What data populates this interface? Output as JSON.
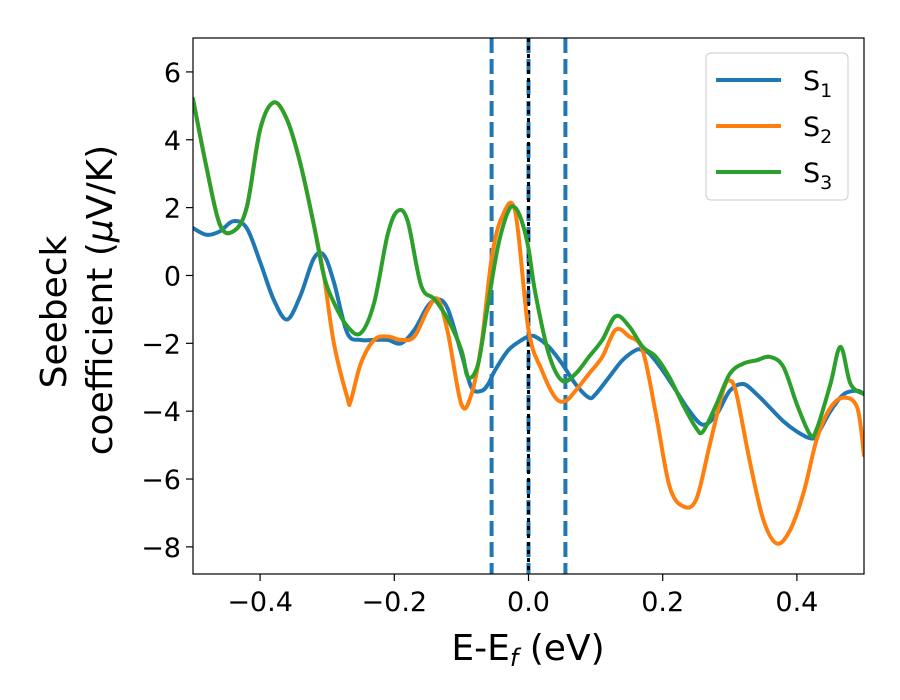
{
  "chart_data": {
    "type": "line",
    "xlabel": "E-E_f (eV)",
    "ylabel": "Seebeck coefficient (μV/K)",
    "xlim": [
      -0.5,
      0.5
    ],
    "ylim": [
      -8.8,
      7.0
    ],
    "xticks": [
      -0.4,
      -0.2,
      0.0,
      0.2,
      0.4
    ],
    "xtick_labels": [
      "−0.4",
      "−0.2",
      "0.0",
      "0.2",
      "0.4"
    ],
    "yticks": [
      6,
      4,
      2,
      0,
      -2,
      -4,
      -6,
      -8
    ],
    "ytick_labels": [
      "6",
      "4",
      "2",
      "0",
      "−2",
      "−4",
      "−6",
      "−8"
    ],
    "grid": false,
    "legend_position": "top-right",
    "vlines": [
      {
        "x": -0.055,
        "style": "dashed",
        "color": "#1f77b4"
      },
      {
        "x": 0.055,
        "style": "dashed",
        "color": "#1f77b4"
      },
      {
        "x": 0.0,
        "style": "dashed",
        "color": "#1f77b4"
      },
      {
        "x": 0.0,
        "style": "dotted",
        "color": "#000000"
      }
    ],
    "series": [
      {
        "name": "S1",
        "label_main": "S",
        "label_sub": "1",
        "color": "#1f77b4",
        "x": [
          -0.5,
          -0.48,
          -0.46,
          -0.44,
          -0.42,
          -0.4,
          -0.38,
          -0.36,
          -0.34,
          -0.32,
          -0.305,
          -0.29,
          -0.27,
          -0.25,
          -0.23,
          -0.21,
          -0.19,
          -0.17,
          -0.15,
          -0.135,
          -0.12,
          -0.1,
          -0.085,
          -0.07,
          -0.06,
          -0.05,
          -0.03,
          -0.01,
          0.0,
          0.01,
          0.03,
          0.05,
          0.07,
          0.09,
          0.1,
          0.12,
          0.14,
          0.16,
          0.17,
          0.18,
          0.2,
          0.22,
          0.24,
          0.26,
          0.28,
          0.3,
          0.32,
          0.34,
          0.36,
          0.38,
          0.4,
          0.42,
          0.43,
          0.45,
          0.47,
          0.49,
          0.5
        ],
        "y": [
          1.4,
          1.2,
          1.3,
          1.6,
          1.4,
          0.4,
          -0.7,
          -1.3,
          -0.6,
          0.5,
          0.6,
          -0.2,
          -1.7,
          -1.9,
          -1.9,
          -1.9,
          -2.0,
          -1.6,
          -0.9,
          -0.7,
          -1.0,
          -2.3,
          -3.3,
          -3.4,
          -3.2,
          -2.8,
          -2.2,
          -1.9,
          -1.8,
          -1.8,
          -2.1,
          -2.6,
          -3.2,
          -3.6,
          -3.5,
          -3.0,
          -2.5,
          -2.2,
          -2.2,
          -2.3,
          -2.8,
          -3.4,
          -4.0,
          -4.4,
          -4.1,
          -3.4,
          -3.2,
          -3.5,
          -3.9,
          -4.3,
          -4.6,
          -4.8,
          -4.7,
          -4.0,
          -3.5,
          -3.4,
          -3.5
        ]
      },
      {
        "name": "S2",
        "label_main": "S",
        "label_sub": "2",
        "color": "#ff7f0e",
        "x": [
          -0.5,
          -0.48,
          -0.46,
          -0.44,
          -0.42,
          -0.4,
          -0.38,
          -0.36,
          -0.34,
          -0.32,
          -0.305,
          -0.29,
          -0.27,
          -0.265,
          -0.25,
          -0.23,
          -0.21,
          -0.19,
          -0.17,
          -0.15,
          -0.135,
          -0.12,
          -0.1,
          -0.085,
          -0.07,
          -0.055,
          -0.04,
          -0.02,
          0.0,
          0.02,
          0.04,
          0.055,
          0.07,
          0.09,
          0.11,
          0.13,
          0.15,
          0.17,
          0.19,
          0.21,
          0.23,
          0.25,
          0.27,
          0.29,
          0.3,
          0.31,
          0.33,
          0.35,
          0.37,
          0.39,
          0.41,
          0.43,
          0.45,
          0.47,
          0.49,
          0.5
        ],
        "y": [
          5.2,
          3.2,
          1.5,
          1.3,
          2.0,
          4.3,
          5.1,
          4.6,
          3.3,
          1.5,
          0.0,
          -2.0,
          -3.6,
          -3.7,
          -2.6,
          -1.9,
          -1.8,
          -1.9,
          -1.8,
          -1.0,
          -0.7,
          -1.7,
          -3.8,
          -3.5,
          -2.0,
          0.5,
          1.7,
          1.9,
          -1.6,
          -2.8,
          -3.6,
          -3.7,
          -3.4,
          -2.9,
          -2.4,
          -1.6,
          -1.8,
          -2.2,
          -4.1,
          -6.2,
          -6.8,
          -6.6,
          -5.0,
          -3.4,
          -3.1,
          -3.5,
          -5.5,
          -7.2,
          -7.9,
          -7.5,
          -6.4,
          -4.8,
          -3.9,
          -3.6,
          -3.9,
          -5.3
        ]
      },
      {
        "name": "S3",
        "label_main": "S",
        "label_sub": "3",
        "color": "#2ca02c",
        "x": [
          -0.5,
          -0.48,
          -0.46,
          -0.44,
          -0.42,
          -0.4,
          -0.38,
          -0.36,
          -0.34,
          -0.32,
          -0.305,
          -0.29,
          -0.27,
          -0.25,
          -0.23,
          -0.21,
          -0.195,
          -0.18,
          -0.16,
          -0.14,
          -0.12,
          -0.1,
          -0.09,
          -0.075,
          -0.06,
          -0.045,
          -0.03,
          -0.02,
          -0.01,
          0.0,
          0.01,
          0.03,
          0.05,
          0.07,
          0.09,
          0.11,
          0.13,
          0.15,
          0.17,
          0.19,
          0.21,
          0.23,
          0.25,
          0.26,
          0.28,
          0.3,
          0.32,
          0.34,
          0.36,
          0.38,
          0.4,
          0.42,
          0.43,
          0.45,
          0.465,
          0.48,
          0.5
        ],
        "y": [
          5.2,
          3.2,
          1.5,
          1.3,
          2.0,
          4.3,
          5.1,
          4.6,
          3.3,
          1.5,
          0.0,
          -0.8,
          -1.5,
          -1.7,
          -0.8,
          1.2,
          1.9,
          1.6,
          -0.3,
          -0.7,
          -1.3,
          -2.2,
          -3.0,
          -2.6,
          -0.8,
          0.9,
          1.9,
          2.0,
          1.6,
          0.8,
          -0.5,
          -2.3,
          -3.1,
          -2.9,
          -2.4,
          -1.9,
          -1.2,
          -1.5,
          -2.1,
          -2.4,
          -3.0,
          -3.8,
          -4.5,
          -4.6,
          -3.8,
          -2.9,
          -2.6,
          -2.5,
          -2.4,
          -2.7,
          -3.8,
          -4.7,
          -4.5,
          -3.2,
          -2.1,
          -3.2,
          -3.5
        ]
      }
    ]
  }
}
